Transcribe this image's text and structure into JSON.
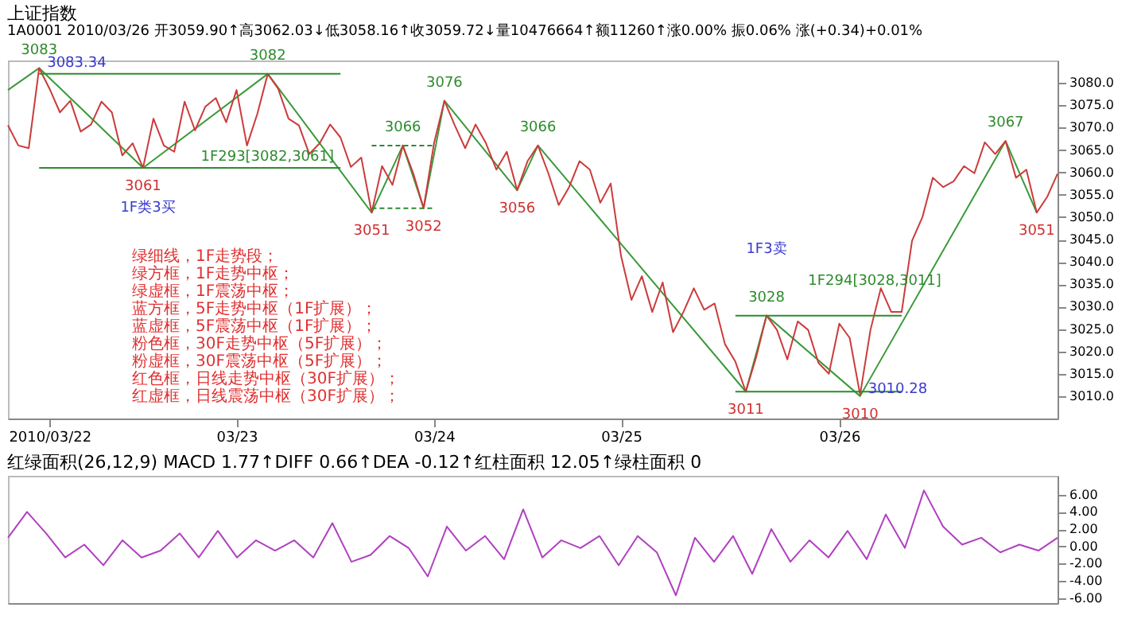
{
  "chart_data": [
    {
      "type": "line",
      "title": "上证指数",
      "subtitle": "1A0001 2010/03/26 开3059.90↑高3062.03↓低3058.16↑收3059.72↓量10476664↑额11260↑涨0.00% 振0.06% 涨(+0.34)+0.01%",
      "categories": [
        null,
        null,
        null,
        null,
        "2010/03/22",
        null,
        null,
        null,
        null,
        null,
        null,
        null,
        null,
        null,
        null,
        null,
        null,
        null,
        null,
        null,
        null,
        null,
        "03/23",
        null,
        null,
        null,
        null,
        null,
        null,
        null,
        null,
        null,
        null,
        null,
        null,
        null,
        null,
        null,
        null,
        null,
        null,
        "03/24",
        null,
        null,
        null,
        null,
        null,
        null,
        null,
        null,
        null,
        null,
        null,
        null,
        null,
        null,
        null,
        null,
        null,
        "03/25",
        null,
        null,
        null,
        null,
        null,
        null,
        null,
        null,
        null,
        null,
        null,
        null,
        null,
        null,
        null,
        null,
        null,
        null,
        null,
        null,
        "03/26",
        null,
        null,
        null,
        null,
        null,
        null,
        null,
        null,
        null,
        null,
        null,
        null,
        null,
        null,
        null,
        null,
        null,
        null,
        null,
        null,
        null
      ],
      "ylim": [
        3005,
        3085
      ],
      "yticks": [
        {
          "value": 3010,
          "label": "3010.0"
        },
        {
          "value": 3015,
          "label": "3015.0"
        },
        {
          "value": 3020,
          "label": "3020.0"
        },
        {
          "value": 3025,
          "label": "3025.0"
        },
        {
          "value": 3030,
          "label": "3030.0"
        },
        {
          "value": 3035,
          "label": "3035.0"
        },
        {
          "value": 3040,
          "label": "3040.0"
        },
        {
          "value": 3045,
          "label": "3045.0"
        },
        {
          "value": 3050,
          "label": "3050.0"
        },
        {
          "value": 3055,
          "label": "3055.0"
        },
        {
          "value": 3060,
          "label": "3060.0"
        },
        {
          "value": 3065,
          "label": "3065.0"
        },
        {
          "value": 3070,
          "label": "3070.0"
        },
        {
          "value": 3075,
          "label": "3075.0"
        },
        {
          "value": 3080,
          "label": "3080.0"
        }
      ],
      "series": [
        {
          "color": "#3a9a3a",
          "values": [
            3078.4,
            null,
            null,
            3083.3,
            null,
            null,
            null,
            null,
            null,
            null,
            null,
            null,
            null,
            3061,
            null,
            null,
            null,
            null,
            null,
            null,
            null,
            null,
            null,
            null,
            null,
            3082,
            null,
            null,
            null,
            null,
            null,
            null,
            null,
            null,
            null,
            3051,
            null,
            null,
            3066,
            null,
            3052,
            null,
            3076,
            null,
            null,
            null,
            null,
            null,
            null,
            3056,
            null,
            3066,
            null,
            null,
            null,
            null,
            null,
            null,
            null,
            null,
            null,
            null,
            null,
            null,
            null,
            null,
            null,
            null,
            null,
            null,
            null,
            3011,
            null,
            3028,
            null,
            null,
            null,
            null,
            null,
            null,
            null,
            null,
            3010,
            null,
            null,
            null,
            null,
            null,
            null,
            null,
            null,
            null,
            null,
            null,
            null,
            null,
            3067,
            null,
            null,
            3051,
            null,
            null
          ]
        },
        {
          "color": "#cc3b3b",
          "values": [
            3070.5,
            3066,
            3065.4,
            3083.3,
            3078.7,
            3073.4,
            3076,
            3069.1,
            3070.7,
            3075.8,
            3073.4,
            3063.8,
            3066.5,
            3061,
            3072,
            3066,
            3064.6,
            3075.8,
            3069.4,
            3074.7,
            3076.6,
            3071.2,
            3078.4,
            3066,
            3073.1,
            3082,
            3078.7,
            3072,
            3070.5,
            3064.1,
            3066.5,
            3070.7,
            3067.8,
            3061.2,
            3063.3,
            3051,
            3061.4,
            3057.2,
            3066,
            3059.8,
            3052,
            3066.5,
            3076,
            3070.5,
            3065.4,
            3070.7,
            3066.5,
            3060.6,
            3064.6,
            3056,
            3062.5,
            3066,
            3059.8,
            3052.7,
            3056.7,
            3062.5,
            3060.6,
            3053.2,
            3057.5,
            3041.3,
            3031.5,
            3036.8,
            3028.8,
            3035.4,
            3024.3,
            3028.8,
            3034.1,
            3029.3,
            3030.7,
            3021.6,
            3017.7,
            3011,
            3018.7,
            3028,
            3024.8,
            3018.2,
            3026.7,
            3024.8,
            3017.4,
            3015,
            3026.2,
            3023,
            3010.3,
            3024.8,
            3034.1,
            3028.8,
            3028.8,
            3044.7,
            3050,
            3058.8,
            3056.7,
            3058,
            3061.4,
            3059.8,
            3066.7,
            3064.1,
            3067,
            3058.8,
            3060.6,
            3051,
            3054.5,
            3059.7
          ]
        },
        {
          "color": "#2e8b2e",
          "values": [
            null,
            null,
            null,
            3082,
            3082,
            3082,
            3082,
            3082,
            3082,
            3082,
            3082,
            3082,
            3082,
            3082,
            3082,
            3082,
            3082,
            3082,
            3082,
            3082,
            3082,
            3082,
            3082,
            3082,
            3082,
            3082,
            3082,
            3082,
            3082,
            3082,
            3082,
            3082,
            3082,
            null,
            null,
            null,
            null,
            null,
            null,
            null,
            null,
            null,
            null,
            null,
            null,
            null,
            null,
            null,
            null,
            null,
            null,
            null,
            null,
            null,
            null,
            null,
            null,
            null,
            null,
            null,
            null,
            null,
            null,
            null,
            null,
            null,
            null,
            null,
            null,
            null,
            null,
            null,
            null,
            null,
            null,
            null,
            null,
            null,
            null,
            null,
            null,
            null,
            null,
            null,
            null,
            null,
            null,
            null,
            null,
            null,
            null,
            null,
            null,
            null,
            null,
            null,
            null,
            null,
            null,
            null,
            null,
            null
          ]
        },
        {
          "color": "#2f8a30",
          "values": [
            null,
            null,
            null,
            3061,
            3061,
            3061,
            3061,
            3061,
            3061,
            3061,
            3061,
            3061,
            3061,
            3061,
            3061,
            3061,
            3061,
            3061,
            3061,
            3061,
            3061,
            3061,
            3061,
            3061,
            3061,
            3061,
            3061,
            3061,
            3061,
            3061,
            3061,
            3061,
            3061,
            null,
            null,
            null,
            null,
            null,
            null,
            null,
            null,
            null,
            null,
            null,
            null,
            null,
            null,
            null,
            null,
            null,
            null,
            null,
            null,
            null,
            null,
            null,
            null,
            null,
            null,
            null,
            null,
            null,
            null,
            null,
            null,
            null,
            null,
            null,
            null,
            null,
            null,
            null,
            null,
            null,
            null,
            null,
            null,
            null,
            null,
            null,
            null,
            null,
            null,
            null,
            null,
            null,
            null,
            null,
            null,
            null,
            null,
            null,
            null,
            null,
            null,
            null,
            null,
            null,
            null,
            null,
            null,
            null
          ]
        },
        {
          "color": "#2e8b2e",
          "line_style": "dashed",
          "values": [
            null,
            null,
            null,
            null,
            null,
            null,
            null,
            null,
            null,
            null,
            null,
            null,
            null,
            null,
            null,
            null,
            null,
            null,
            null,
            null,
            null,
            null,
            null,
            null,
            null,
            null,
            null,
            null,
            null,
            null,
            null,
            null,
            null,
            null,
            null,
            3066,
            3066,
            3066,
            3066,
            3066,
            3066,
            3066,
            null,
            null,
            null,
            null,
            null,
            null,
            null,
            null,
            null,
            null,
            null,
            null,
            null,
            null,
            null,
            null,
            null,
            null,
            null,
            null,
            null,
            null,
            null,
            null,
            null,
            null,
            null,
            null,
            null,
            null,
            null,
            null,
            null,
            null,
            null,
            null,
            null,
            null,
            null,
            null,
            null,
            null,
            null,
            null,
            null,
            null,
            null,
            null,
            null,
            null,
            null,
            null,
            null,
            null,
            null,
            null,
            null,
            null,
            null,
            null
          ]
        },
        {
          "color": "#2f8a30",
          "line_style": "dashed",
          "values": [
            null,
            null,
            null,
            null,
            null,
            null,
            null,
            null,
            null,
            null,
            null,
            null,
            null,
            null,
            null,
            null,
            null,
            null,
            null,
            null,
            null,
            null,
            null,
            null,
            null,
            null,
            null,
            null,
            null,
            null,
            null,
            null,
            null,
            null,
            null,
            3052,
            3052,
            3052,
            3052,
            3052,
            3052,
            3052,
            null,
            null,
            null,
            null,
            null,
            null,
            null,
            null,
            null,
            null,
            null,
            null,
            null,
            null,
            null,
            null,
            null,
            null,
            null,
            null,
            null,
            null,
            null,
            null,
            null,
            null,
            null,
            null,
            null,
            null,
            null,
            null,
            null,
            null,
            null,
            null,
            null,
            null,
            null,
            null,
            null,
            null,
            null,
            null,
            null,
            null,
            null,
            null,
            null,
            null,
            null,
            null,
            null,
            null,
            null,
            null,
            null,
            null,
            null,
            null
          ]
        },
        {
          "color": "#2e8b2e",
          "values": [
            null,
            null,
            null,
            null,
            null,
            null,
            null,
            null,
            null,
            null,
            null,
            null,
            null,
            null,
            null,
            null,
            null,
            null,
            null,
            null,
            null,
            null,
            null,
            null,
            null,
            null,
            null,
            null,
            null,
            null,
            null,
            null,
            null,
            null,
            null,
            null,
            null,
            null,
            null,
            null,
            null,
            null,
            null,
            null,
            null,
            null,
            null,
            null,
            null,
            null,
            null,
            null,
            null,
            null,
            null,
            null,
            null,
            null,
            null,
            null,
            null,
            null,
            null,
            null,
            null,
            null,
            null,
            null,
            null,
            null,
            3028,
            3028,
            3028,
            3028,
            3028,
            3028,
            3028,
            3028,
            3028,
            3028,
            3028,
            3028,
            3028,
            3028,
            3028,
            3028,
            3028,
            null,
            null,
            null,
            null,
            null,
            null,
            null,
            null,
            null,
            null,
            null,
            null,
            null,
            null,
            null
          ]
        },
        {
          "color": "#2f8a30",
          "values": [
            null,
            null,
            null,
            null,
            null,
            null,
            null,
            null,
            null,
            null,
            null,
            null,
            null,
            null,
            null,
            null,
            null,
            null,
            null,
            null,
            null,
            null,
            null,
            null,
            null,
            null,
            null,
            null,
            null,
            null,
            null,
            null,
            null,
            null,
            null,
            null,
            null,
            null,
            null,
            null,
            null,
            null,
            null,
            null,
            null,
            null,
            null,
            null,
            null,
            null,
            null,
            null,
            null,
            null,
            null,
            null,
            null,
            null,
            null,
            null,
            null,
            null,
            null,
            null,
            null,
            null,
            null,
            null,
            null,
            null,
            3011,
            3011,
            3011,
            3011,
            3011,
            3011,
            3011,
            3011,
            3011,
            3011,
            3011,
            3011,
            3011,
            3011,
            3011,
            3011,
            3011,
            null,
            null,
            null,
            null,
            null,
            null,
            null,
            null,
            null,
            null,
            null,
            null,
            null,
            null,
            null
          ]
        }
      ],
      "annotations": [
        {
          "text": "3083",
          "y": 3083.3
        },
        {
          "text": "3083.34",
          "y": 3083.3
        },
        {
          "text": "3061",
          "y": 3061
        },
        {
          "text": "3082",
          "y": 3082
        },
        {
          "text": "3051",
          "y": 3051
        },
        {
          "text": "3066",
          "y": 3066
        },
        {
          "text": "3052",
          "y": 3052
        },
        {
          "text": "3076",
          "y": 3076
        },
        {
          "text": "3056",
          "y": 3056
        },
        {
          "text": "3066",
          "y": 3066
        },
        {
          "text": "3011",
          "y": 3011
        },
        {
          "text": "3028",
          "y": 3028
        },
        {
          "text": "3010",
          "y": 3010
        },
        {
          "text": "3010.28",
          "y": 3010.3
        },
        {
          "text": "3067",
          "y": 3067
        },
        {
          "text": "3051",
          "y": 3051
        },
        "1F类3买",
        "1F293[3082,3061]",
        "1F3卖",
        "1F294[3028,3011]",
        "绿细线，1F走势段；",
        "绿方框，1F走势中枢；",
        "绿虚框，1F震荡中枢；",
        "蓝方框，5F走势中枢（1F扩展）；",
        "蓝虚框，5F震荡中枢（1F扩展）；",
        "粉色框，30F走势中枢（5F扩展）；",
        "粉虚框，30F震荡中枢（5F扩展）；",
        "红色框，日线走势中枢（30F扩展）；",
        "红虚框，日线震荡中枢（30F扩展）；"
      ]
    },
    {
      "type": "line",
      "title": "红绿面积(26,12,9) MACD 1.77↑DIFF 0.66↑DEA -0.12↑红柱面积 12.05↑绿柱面积 0",
      "categories": [
        null,
        null,
        null,
        null,
        null,
        null,
        null,
        null,
        null,
        null,
        null,
        null,
        null,
        null,
        null,
        null,
        null,
        null,
        null,
        null,
        null,
        null,
        null,
        null,
        null,
        null,
        null,
        null,
        null,
        null,
        null,
        null,
        null,
        null,
        null,
        null,
        null,
        null,
        null,
        null,
        null,
        null,
        null,
        null,
        null,
        null,
        null,
        null,
        null,
        null,
        null,
        null,
        null,
        null,
        null,
        null
      ],
      "ylim": [
        -6.6,
        8.2
      ],
      "yticks": [
        {
          "value": -6,
          "label": "-6.00"
        },
        {
          "value": -4,
          "label": "-4.00"
        },
        {
          "value": -2,
          "label": "-2.00"
        },
        {
          "value": 0,
          "label": "0.00"
        },
        {
          "value": 2,
          "label": "2.00"
        },
        {
          "value": 4,
          "label": "4.00"
        },
        {
          "value": 6,
          "label": "6.00"
        }
      ],
      "tick_labels": "y",
      "series": [
        {
          "color": "#b040c0",
          "values": [
            1,
            4,
            1.5,
            -1.3,
            0.2,
            -2.2,
            0.7,
            -1.3,
            -0.5,
            1.5,
            -1.3,
            1.8,
            -1.3,
            0.7,
            -0.5,
            0.7,
            -1.3,
            2.7,
            -1.8,
            -1,
            1.2,
            -0.2,
            -3.5,
            2.3,
            -0.5,
            1.2,
            -1.5,
            4.3,
            -1.3,
            0.7,
            -0.2,
            1.2,
            -2.2,
            1.2,
            -0.7,
            -5.7,
            1,
            -1.8,
            1.2,
            -3.2,
            2,
            -1.8,
            0.7,
            -1.3,
            1.8,
            -1.5,
            3.7,
            -0.2,
            6.5,
            2.3,
            0.2,
            1,
            -0.7,
            0.2,
            -0.5,
            1
          ]
        }
      ]
    }
  ]
}
